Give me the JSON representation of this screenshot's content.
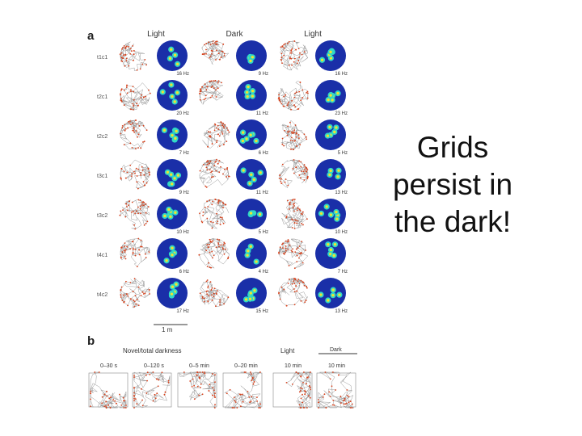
{
  "panel_a": {
    "letter": "a",
    "headers": [
      "Light",
      "Dark",
      "Light"
    ],
    "rows": [
      {
        "label": "t1c1",
        "rates": [
          "16 Hz",
          "9 Hz",
          "16 Hz"
        ]
      },
      {
        "label": "t2c1",
        "rates": [
          "20 Hz",
          "11 Hz",
          "23 Hz"
        ]
      },
      {
        "label": "t2c2",
        "rates": [
          "7 Hz",
          "6 Hz",
          "5 Hz"
        ]
      },
      {
        "label": "t3c1",
        "rates": [
          "9 Hz",
          "11 Hz",
          "13 Hz"
        ]
      },
      {
        "label": "t3c2",
        "rates": [
          "10 Hz",
          "5 Hz",
          "10 Hz"
        ]
      },
      {
        "label": "t4c1",
        "rates": [
          "6 Hz",
          "4 Hz",
          "7 Hz"
        ]
      },
      {
        "label": "t4c2",
        "rates": [
          "17 Hz",
          "15 Hz",
          "13 Hz"
        ]
      }
    ],
    "scale_label": "1 m"
  },
  "panel_b": {
    "letter": "b",
    "group_novel": "Novel/total darkness",
    "group_light": "Light",
    "group_dark": "Dark",
    "intervals": [
      "0–30 s",
      "0–120 s",
      "0–5 min",
      "0–20 min",
      "10 min",
      "10 min"
    ]
  },
  "caption": {
    "line1": "Grids",
    "line2": "persist in",
    "line3": "the dark!"
  },
  "colors": {
    "trajectory": "#9a9a9a",
    "spike": "#d8431d",
    "map_background": "#1a2fa8",
    "map_field": "#2fd8c8",
    "map_peak": "#f2e230"
  }
}
